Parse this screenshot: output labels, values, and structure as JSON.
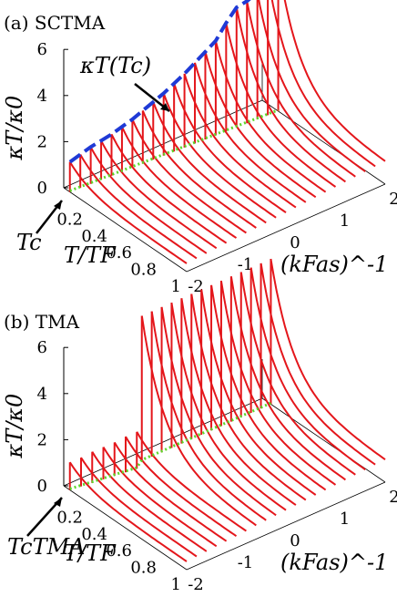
{
  "chart_data": [
    {
      "type": "line",
      "panel": "(a) SCTMA",
      "ylabel": "κT/κ0",
      "xlabel_T": "T/TF",
      "xlabel_k": "(kFas)^-1",
      "zlim": [
        0,
        6
      ],
      "z_ticks": [
        "0",
        "2",
        "4",
        "6"
      ],
      "t_ticks": [
        "0.2",
        "0.4",
        "0.6",
        "0.8",
        "1"
      ],
      "k_ticks": [
        "-2",
        "-1",
        "0",
        "1",
        "2"
      ],
      "annotations": [
        "κT(Tc)",
        "Tc"
      ],
      "series": [
        {
          "kappa_at_Tc": [
            1.3,
            1.45,
            1.6,
            1.7,
            1.8,
            1.95,
            2.1,
            2.3,
            2.5,
            2.7,
            2.95,
            3.2,
            3.5,
            3.8,
            4.1,
            4.7,
            5.2,
            5.3,
            5.5,
            6.0,
            6.4
          ]
        }
      ]
    },
    {
      "type": "line",
      "panel": "(b) TMA",
      "ylabel": "κT/κ0",
      "xlabel_T": "T/TF",
      "xlabel_k": "(kFas)^-1",
      "zlim": [
        0,
        6
      ],
      "z_ticks": [
        "0",
        "2",
        "4",
        "6"
      ],
      "t_ticks": [
        "0.2",
        "0.4",
        "0.6",
        "0.8",
        "1"
      ],
      "k_ticks": [
        "-2",
        "-1",
        "0",
        "1",
        "2"
      ],
      "annotations": [
        "TcTMA"
      ],
      "series": [
        {
          "kappa_at_Tc": [
            1.2,
            1.25,
            1.35,
            1.4,
            1.45,
            1.55,
            1.6,
            6.3,
            6.3,
            6.3,
            6.3,
            6.3,
            6.3,
            6.3,
            6.3,
            6.3,
            6.3,
            6.3,
            6.3,
            6.3,
            6.3
          ]
        }
      ]
    }
  ],
  "colors": {
    "curves": "#e4161b",
    "kappa_Tc": "#1f3ad6",
    "Tc_line": "#5bd62a",
    "axes": "#000000"
  },
  "labels": {
    "a_title": "(a) SCTMA",
    "b_title": "(b) TMA",
    "kappa_tc": "κT(Tc)",
    "tc": "Tc",
    "tc_tma": "TcTMA"
  }
}
